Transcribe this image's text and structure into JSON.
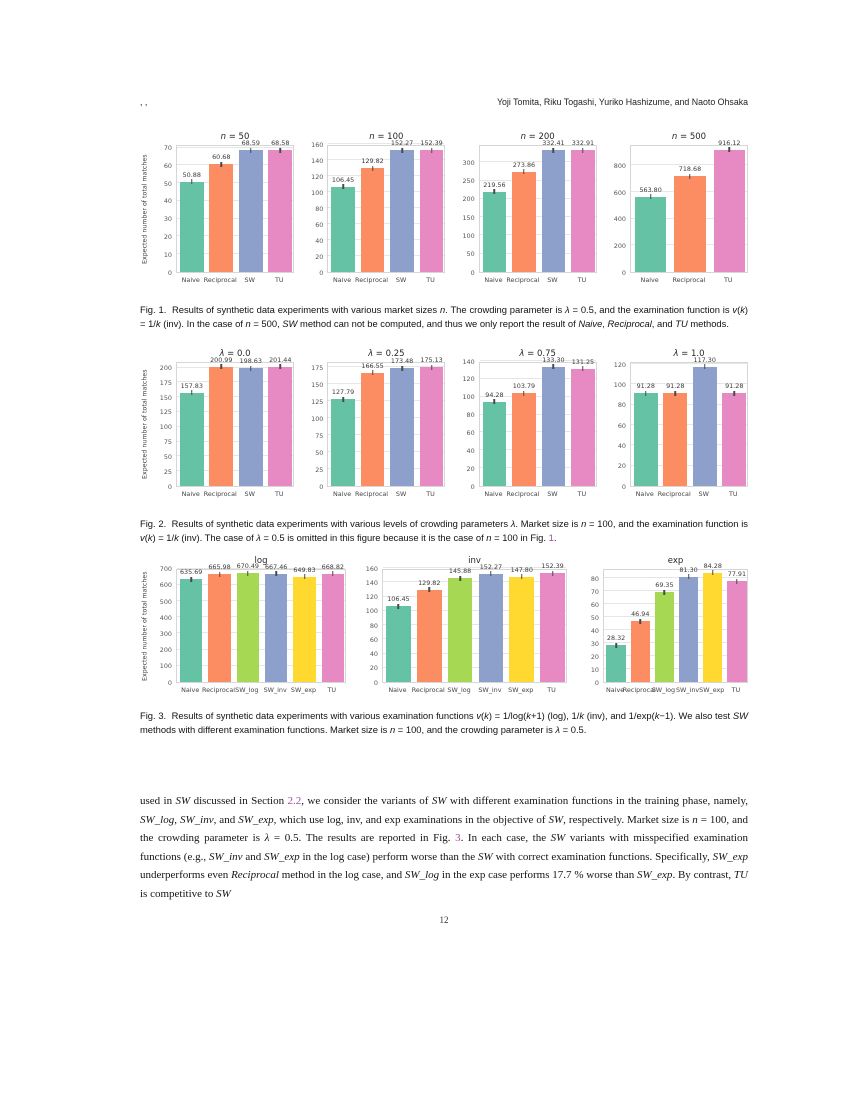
{
  "header": {
    "left": ", ,",
    "authors": "Yoji Tomita, Riku Togashi, Yuriko Hashizume, and Naoto Ohsaka"
  },
  "page_number": "12",
  "palette": {
    "Naive": "#66c2a5",
    "Reciprocal": "#fc8d62",
    "SW": "#8da0cb",
    "TU": "#e78ac3",
    "SW_log": "#a6d854",
    "SW_inv": "#8da0cb",
    "SW_exp": "#ffd92f"
  },
  "link_color": "#9d4e9b",
  "chart_data": [
    {
      "type": "bar",
      "title": "n = 50",
      "ylabel": "Expected number of total matches",
      "categories": [
        "Naive",
        "Reciprocal",
        "SW",
        "TU"
      ],
      "values": [
        50.88,
        60.68,
        68.59,
        68.58
      ],
      "yticks": [
        0,
        10,
        20,
        30,
        40,
        50,
        60,
        70
      ],
      "ylim": 72,
      "grid": true,
      "legend": "none"
    },
    {
      "type": "bar",
      "title": "n = 100",
      "categories": [
        "Naive",
        "Reciprocal",
        "SW",
        "TU"
      ],
      "values": [
        106.45,
        129.82,
        152.27,
        152.39
      ],
      "yticks": [
        0,
        20,
        40,
        60,
        80,
        100,
        120,
        140,
        160
      ],
      "ylim": 160,
      "grid": true,
      "legend": "none"
    },
    {
      "type": "bar",
      "title": "n = 200",
      "categories": [
        "Naive",
        "Reciprocal",
        "SW",
        "TU"
      ],
      "values": [
        219.56,
        273.86,
        332.41,
        332.91
      ],
      "yticks": [
        0,
        50,
        100,
        150,
        200,
        250,
        300
      ],
      "ylim": 350,
      "grid": true,
      "legend": "none"
    },
    {
      "type": "bar",
      "title": "n = 500",
      "categories": [
        "Naive",
        "Reciprocal",
        "TU"
      ],
      "values": [
        563.8,
        718.68,
        916.12
      ],
      "yticks": [
        0,
        200,
        400,
        600,
        800
      ],
      "ylim": 960,
      "grid": true,
      "legend": "none"
    },
    {
      "type": "bar",
      "title": "λ = 0.0",
      "ylabel": "Expected number of total matches",
      "categories": [
        "Naive",
        "Reciprocal",
        "SW",
        "TU"
      ],
      "values": [
        157.83,
        200.99,
        198.63,
        201.44
      ],
      "yticks": [
        0,
        25,
        50,
        75,
        100,
        125,
        150,
        175,
        200
      ],
      "ylim": 211,
      "grid": true,
      "legend": "none"
    },
    {
      "type": "bar",
      "title": "λ = 0.25",
      "categories": [
        "Naive",
        "Reciprocal",
        "SW",
        "TU"
      ],
      "values": [
        127.79,
        166.55,
        173.48,
        175.13
      ],
      "yticks": [
        0,
        25,
        50,
        75,
        100,
        125,
        150,
        175
      ],
      "ylim": 184,
      "grid": true,
      "legend": "none"
    },
    {
      "type": "bar",
      "title": "λ = 0.75",
      "categories": [
        "Naive",
        "Reciprocal",
        "SW",
        "TU"
      ],
      "values": [
        94.28,
        103.79,
        133.3,
        131.25
      ],
      "yticks": [
        0,
        20,
        40,
        60,
        80,
        100,
        120,
        140
      ],
      "ylim": 140,
      "grid": true,
      "legend": "none"
    },
    {
      "type": "bar",
      "title": "λ = 1.0",
      "categories": [
        "Naive",
        "Reciprocal",
        "SW",
        "TU"
      ],
      "values": [
        91.28,
        91.28,
        117.3,
        91.28
      ],
      "yticks": [
        0,
        20,
        40,
        60,
        80,
        100,
        120
      ],
      "ylim": 123,
      "grid": true,
      "legend": "none"
    },
    {
      "type": "bar",
      "title": "log",
      "ylabel": "Expected number of total matches",
      "categories": [
        "Naive",
        "Reciprocal",
        "SW_log",
        "SW_inv",
        "SW_exp",
        "TU"
      ],
      "values": [
        635.69,
        665.98,
        670.49,
        667.46,
        649.83,
        668.82
      ],
      "yticks": [
        0,
        100,
        200,
        300,
        400,
        500,
        600,
        700
      ],
      "ylim": 704,
      "grid": true,
      "legend": "none"
    },
    {
      "type": "bar",
      "title": "inv",
      "categories": [
        "Naive",
        "Reciprocal",
        "SW_log",
        "SW_inv",
        "SW_exp",
        "TU"
      ],
      "values": [
        106.45,
        129.82,
        145.88,
        152.27,
        147.8,
        152.39
      ],
      "yticks": [
        0,
        20,
        40,
        60,
        80,
        100,
        120,
        140,
        160
      ],
      "ylim": 160,
      "grid": true,
      "legend": "none"
    },
    {
      "type": "bar",
      "title": "exp",
      "categories": [
        "Naive",
        "Reciprocal",
        "SW_log",
        "SW_inv",
        "SW_exp",
        "TU"
      ],
      "values": [
        28.32,
        46.94,
        69.35,
        81.3,
        84.28,
        77.91
      ],
      "yticks": [
        0,
        10,
        20,
        30,
        40,
        50,
        60,
        70,
        80
      ],
      "ylim": 88,
      "grid": true,
      "legend": "none"
    }
  ],
  "figures": [
    {
      "caption": [
        {
          "t": "Fig. 1.  Results of synthetic data experiments with various market sizes "
        },
        {
          "t": "n",
          "s": "i"
        },
        {
          "t": ". The crowding parameter is "
        },
        {
          "t": "λ",
          "s": "i"
        },
        {
          "t": " = 0.5, and the examination function is "
        },
        {
          "t": "v",
          "s": "i"
        },
        {
          "t": "("
        },
        {
          "t": "k",
          "s": "i"
        },
        {
          "t": ") = 1/"
        },
        {
          "t": "k",
          "s": "i"
        },
        {
          "t": " (inv). In the case of "
        },
        {
          "t": "n",
          "s": "i"
        },
        {
          "t": " = 500, "
        },
        {
          "t": "SW",
          "s": "i"
        },
        {
          "t": " method can not be computed, and thus we only report the result of "
        },
        {
          "t": "Naive",
          "s": "i"
        },
        {
          "t": ", "
        },
        {
          "t": "Reciprocal",
          "s": "i"
        },
        {
          "t": ", and "
        },
        {
          "t": "TU",
          "s": "i"
        },
        {
          "t": " methods."
        }
      ]
    },
    {
      "caption": [
        {
          "t": "Fig. 2.  Results of synthetic data experiments with various levels of crowding parameters "
        },
        {
          "t": "λ",
          "s": "i"
        },
        {
          "t": ". Market size is "
        },
        {
          "t": "n",
          "s": "i"
        },
        {
          "t": " = 100, and the examination function is "
        },
        {
          "t": "v",
          "s": "i"
        },
        {
          "t": "("
        },
        {
          "t": "k",
          "s": "i"
        },
        {
          "t": ") = 1/"
        },
        {
          "t": "k",
          "s": "i"
        },
        {
          "t": " (inv). The case of "
        },
        {
          "t": "λ",
          "s": "i"
        },
        {
          "t": " = 0.5 is omitted in this figure because it is the case of "
        },
        {
          "t": "n",
          "s": "i"
        },
        {
          "t": " = 100 in Fig. "
        },
        {
          "t": "1",
          "s": "l"
        },
        {
          "t": "."
        }
      ]
    },
    {
      "caption": [
        {
          "t": "Fig. 3.  Results of synthetic data experiments with various examination functions "
        },
        {
          "t": "v",
          "s": "i"
        },
        {
          "t": "("
        },
        {
          "t": "k",
          "s": "i"
        },
        {
          "t": ") = 1/log("
        },
        {
          "t": "k",
          "s": "i"
        },
        {
          "t": "+1) (log), 1/"
        },
        {
          "t": "k",
          "s": "i"
        },
        {
          "t": " (inv), and 1/exp("
        },
        {
          "t": "k",
          "s": "i"
        },
        {
          "t": "−1). We also test "
        },
        {
          "t": "SW",
          "s": "i"
        },
        {
          "t": " methods with different examination functions. Market size is "
        },
        {
          "t": "n",
          "s": "i"
        },
        {
          "t": " = 100, and the crowding parameter is "
        },
        {
          "t": "λ",
          "s": "i"
        },
        {
          "t": " = 0.5."
        }
      ]
    }
  ],
  "body": {
    "paragraph": [
      {
        "t": "used in "
      },
      {
        "t": "SW",
        "s": "i"
      },
      {
        "t": " discussed in Section "
      },
      {
        "t": "2.2",
        "s": "l"
      },
      {
        "t": ", we consider the variants of "
      },
      {
        "t": "SW",
        "s": "i"
      },
      {
        "t": " with different examination functions in the training phase, namely, "
      },
      {
        "t": "SW_log",
        "s": "i"
      },
      {
        "t": ", "
      },
      {
        "t": "SW_inv",
        "s": "i"
      },
      {
        "t": ", and "
      },
      {
        "t": "SW_exp",
        "s": "i"
      },
      {
        "t": ", which use log, inv, and exp examinations in the objective of "
      },
      {
        "t": "SW",
        "s": "i"
      },
      {
        "t": ", respectively. Market size is "
      },
      {
        "t": "n",
        "s": "i"
      },
      {
        "t": " = 100, and the crowding parameter is "
      },
      {
        "t": "λ",
        "s": "i"
      },
      {
        "t": " = 0.5. The results are reported in Fig. "
      },
      {
        "t": "3",
        "s": "l"
      },
      {
        "t": ". In each case, the "
      },
      {
        "t": "SW",
        "s": "i"
      },
      {
        "t": " variants with misspecified examination functions (e.g., "
      },
      {
        "t": "SW_inv",
        "s": "i"
      },
      {
        "t": " and "
      },
      {
        "t": "SW_exp",
        "s": "i"
      },
      {
        "t": " in the log case) perform worse than the "
      },
      {
        "t": "SW",
        "s": "i"
      },
      {
        "t": " with correct examination functions. Specifically, "
      },
      {
        "t": "SW_exp",
        "s": "i"
      },
      {
        "t": " underperforms even "
      },
      {
        "t": "Reciprocal",
        "s": "i"
      },
      {
        "t": " method in the log case, and "
      },
      {
        "t": "SW_log",
        "s": "i"
      },
      {
        "t": " in the exp case performs 17.7 % worse than "
      },
      {
        "t": "SW_exp",
        "s": "i"
      },
      {
        "t": ". By contrast, "
      },
      {
        "t": "TU",
        "s": "i"
      },
      {
        "t": " is competitive to "
      },
      {
        "t": "SW",
        "s": "i"
      }
    ]
  }
}
